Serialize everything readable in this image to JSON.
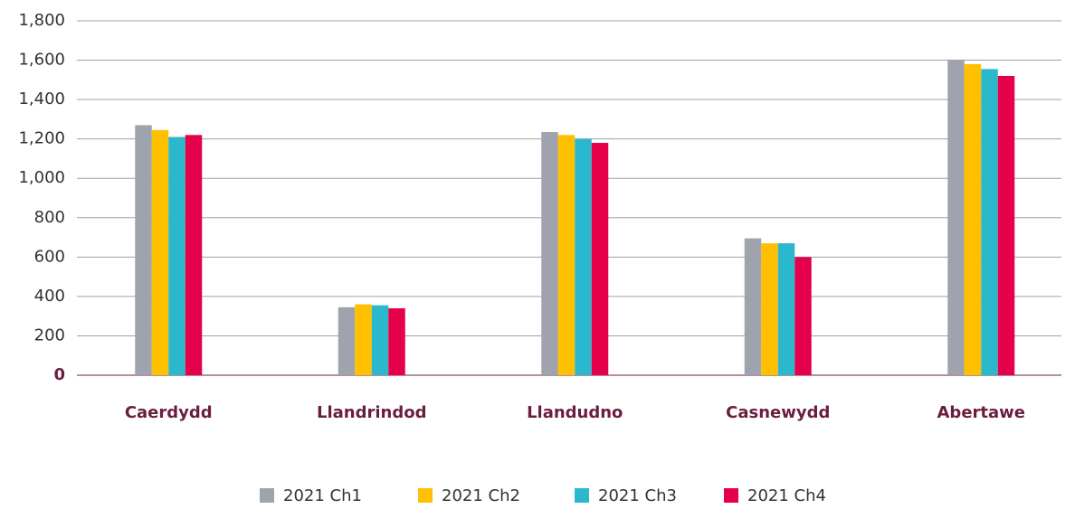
{
  "chart_data": {
    "type": "bar",
    "categories": [
      "Caerdydd",
      "Llandrindod",
      "Llandudno",
      "Casnewydd",
      "Abertawe"
    ],
    "series": [
      {
        "name": "2021 Ch1",
        "color": "#9ea3ae",
        "values": [
          1270,
          345,
          1235,
          695,
          1600
        ]
      },
      {
        "name": "2021 Ch2",
        "color": "#ffc000",
        "values": [
          1245,
          360,
          1220,
          670,
          1580
        ]
      },
      {
        "name": "2021 Ch3",
        "color": "#2bb8cc",
        "values": [
          1210,
          355,
          1200,
          670,
          1555
        ]
      },
      {
        "name": "2021 Ch4",
        "color": "#e4004b",
        "values": [
          1220,
          340,
          1180,
          600,
          1520
        ]
      }
    ],
    "ylim": [
      0,
      1800
    ],
    "yticks": [
      0,
      200,
      400,
      600,
      800,
      {
        "value": 1000,
        "label": "1,000"
      },
      {
        "value": 1200,
        "label": "1,200"
      },
      {
        "value": 1400,
        "label": "1,400"
      },
      {
        "value": 1600,
        "label": "1,600"
      },
      {
        "value": 1800,
        "label": "1,800"
      }
    ],
    "grid": true,
    "legend": "bottom"
  }
}
